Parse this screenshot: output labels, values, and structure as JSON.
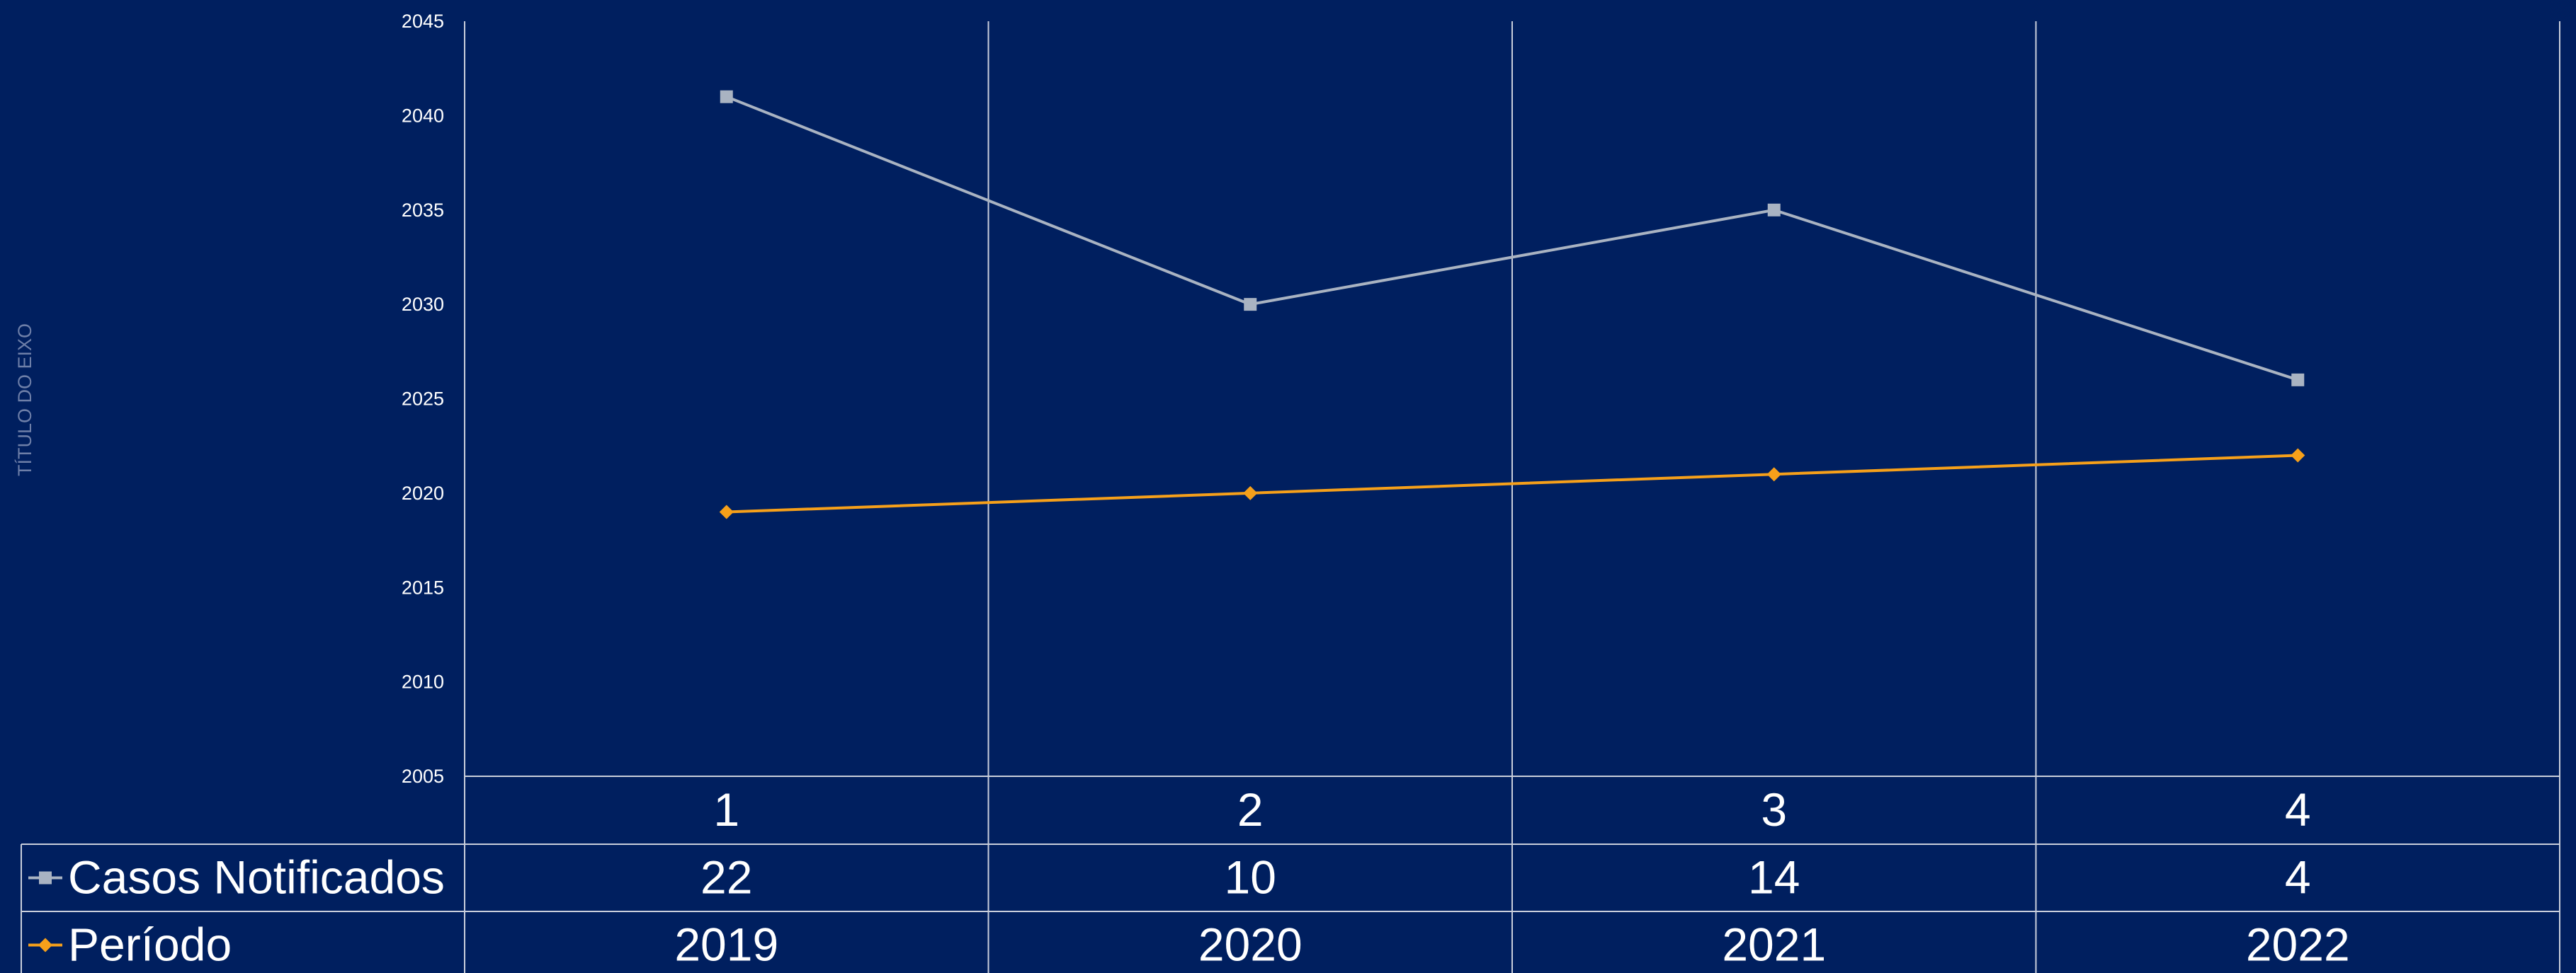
{
  "chart_data": {
    "type": "line",
    "categories": [
      "1",
      "2",
      "3",
      "4"
    ],
    "ylabel": "TÍTULO DO EIXO",
    "ylim": [
      2005,
      2045
    ],
    "yticks": [
      2005,
      2010,
      2015,
      2020,
      2025,
      2030,
      2035,
      2040,
      2045
    ],
    "grid": true,
    "legend": "data-table",
    "series": [
      {
        "name": "Casos Notificados",
        "values": [
          2041,
          2030,
          2035,
          2026
        ],
        "table_values": [
          "22",
          "10",
          "14",
          "4"
        ],
        "color": "#A9B3C2",
        "marker": "square"
      },
      {
        "name": "Período",
        "values": [
          2019,
          2020,
          2021,
          2022
        ],
        "table_values": [
          "2019",
          "2020",
          "2021",
          "2022"
        ],
        "color": "#F6A01A",
        "marker": "diamond"
      }
    ]
  }
}
